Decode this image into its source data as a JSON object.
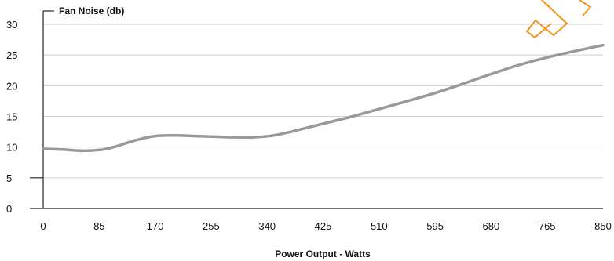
{
  "chart_data": {
    "type": "line",
    "ylabel": "Fan Noise (db)",
    "xlabel": "Power Output - Watts",
    "xlim": [
      0,
      850
    ],
    "ylim": [
      0,
      30
    ],
    "x_ticks": [
      "0",
      "85",
      "170",
      "255",
      "340",
      "425",
      "510",
      "595",
      "680",
      "765",
      "850"
    ],
    "y_ticks": [
      "0",
      "5",
      "10",
      "15",
      "20",
      "25",
      "30"
    ],
    "grid": true,
    "series": [
      {
        "color": "#999999",
        "x": [
          0,
          30,
          60,
          90,
          110,
          140,
          170,
          200,
          230,
          260,
          290,
          320,
          350,
          380,
          425,
          470,
          510,
          550,
          595,
          640,
          680,
          720,
          765,
          810,
          850
        ],
        "y": [
          9.7,
          9.6,
          9.4,
          9.6,
          10.1,
          11.1,
          11.8,
          11.9,
          11.8,
          11.7,
          11.6,
          11.6,
          11.9,
          12.6,
          13.8,
          15.0,
          16.2,
          17.4,
          18.8,
          20.4,
          21.9,
          23.3,
          24.6,
          25.7,
          26.6
        ]
      }
    ],
    "decoration_color": "#f0921e"
  }
}
